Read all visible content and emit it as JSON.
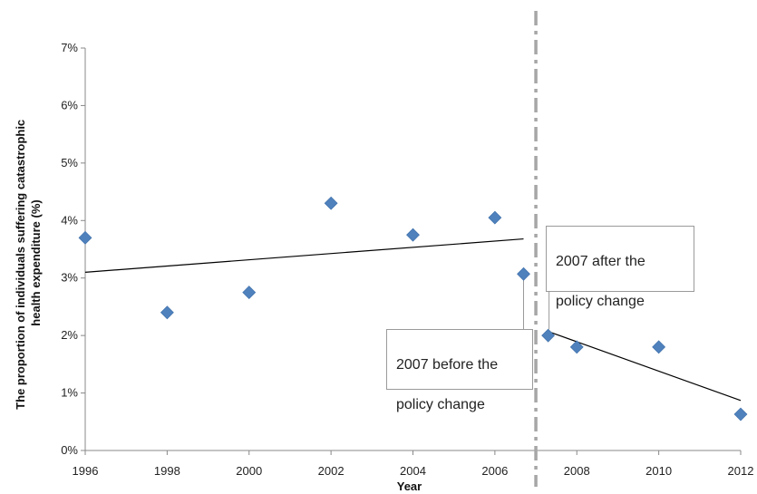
{
  "chart_data": {
    "type": "scatter",
    "xlabel": "Year",
    "ylabel": "The proportion of individuals suffering catastrophic health expenditure (%)",
    "ylabel_lines": [
      "The proportion of individuals suffering catastrophic",
      "health expenditure (%)"
    ],
    "xlim": [
      1996,
      2012
    ],
    "ylim": [
      0,
      7
    ],
    "x_ticks": [
      1996,
      1998,
      2000,
      2002,
      2004,
      2006,
      2008,
      2010,
      2012
    ],
    "x_tick_labels": [
      "1996",
      "1998",
      "2000",
      "2002",
      "2004",
      "2006",
      "2008",
      "2010",
      "2012"
    ],
    "y_ticks": [
      0,
      1,
      2,
      3,
      4,
      5,
      6,
      7
    ],
    "y_tick_labels": [
      "0%",
      "1%",
      "2%",
      "3%",
      "4%",
      "5%",
      "6%",
      "7%"
    ],
    "grid": false,
    "marker_color": "#4F81BD",
    "points": [
      {
        "x": 1996,
        "y": 3.7
      },
      {
        "x": 1998,
        "y": 2.4
      },
      {
        "x": 2000,
        "y": 2.75
      },
      {
        "x": 2002,
        "y": 4.3
      },
      {
        "x": 2004,
        "y": 3.75
      },
      {
        "x": 2006,
        "y": 4.05
      },
      {
        "x": 2006.7,
        "y": 3.07
      },
      {
        "x": 2007.3,
        "y": 2.0
      },
      {
        "x": 2008,
        "y": 1.8
      },
      {
        "x": 2010,
        "y": 1.8
      },
      {
        "x": 2012,
        "y": 0.63
      }
    ],
    "trend_lines": [
      {
        "x1": 1996,
        "y1": 3.1,
        "x2": 2006.7,
        "y2": 3.68
      },
      {
        "x1": 2007.3,
        "y1": 2.07,
        "x2": 2012,
        "y2": 0.87
      }
    ],
    "policy_line": {
      "x": 2007,
      "color": "#A6A6A6"
    },
    "annotations": [
      {
        "lines": [
          "2007 before the",
          "policy change"
        ],
        "target": {
          "x": 2006.7,
          "y": 3.07
        }
      },
      {
        "lines": [
          "2007 after the",
          "policy change"
        ],
        "target": {
          "x": 2007.3,
          "y": 2.0
        }
      }
    ]
  }
}
